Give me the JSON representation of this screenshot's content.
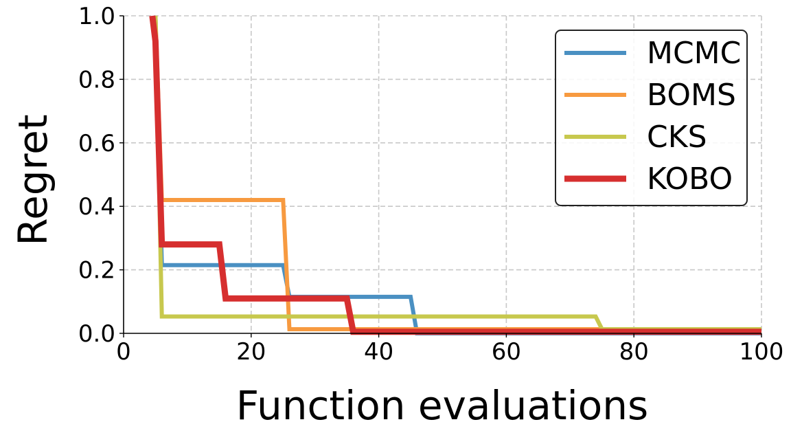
{
  "chart_data": {
    "type": "line",
    "title": "",
    "xlabel": "Function evaluations",
    "ylabel": "Regret",
    "xlim": [
      0,
      100
    ],
    "ylim": [
      0,
      1.0
    ],
    "xticks": [
      0,
      20,
      40,
      60,
      80,
      100
    ],
    "xtick_labels": [
      "0",
      "20",
      "40",
      "60",
      "80",
      "100"
    ],
    "yticks": [
      0.0,
      0.2,
      0.4,
      0.6,
      0.8,
      1.0
    ],
    "ytick_labels": [
      "0.0",
      "0.2",
      "0.4",
      "0.6",
      "0.8",
      "1.0"
    ],
    "grid": true,
    "legend_position": "top-right",
    "series": [
      {
        "name": "MCMC",
        "color": "#4a90c2",
        "x": [
          5,
          6,
          25,
          26,
          45,
          46,
          100
        ],
        "y": [
          1.0,
          0.215,
          0.215,
          0.115,
          0.115,
          0.0,
          0.0
        ]
      },
      {
        "name": "BOMS",
        "color": "#f79a40",
        "x": [
          5,
          6,
          25,
          26,
          100
        ],
        "y": [
          1.0,
          0.42,
          0.42,
          0.013,
          0.013
        ]
      },
      {
        "name": "CKS",
        "color": "#c7c84e",
        "x": [
          5,
          6,
          74,
          75,
          100
        ],
        "y": [
          1.0,
          0.053,
          0.053,
          0.013,
          0.013
        ]
      },
      {
        "name": "KOBO",
        "color": "#d62f2f",
        "x": [
          4.5,
          5,
          6,
          15,
          16,
          35,
          36,
          100
        ],
        "y": [
          1.0,
          0.92,
          0.28,
          0.28,
          0.11,
          0.11,
          0.005,
          0.005
        ]
      }
    ]
  }
}
